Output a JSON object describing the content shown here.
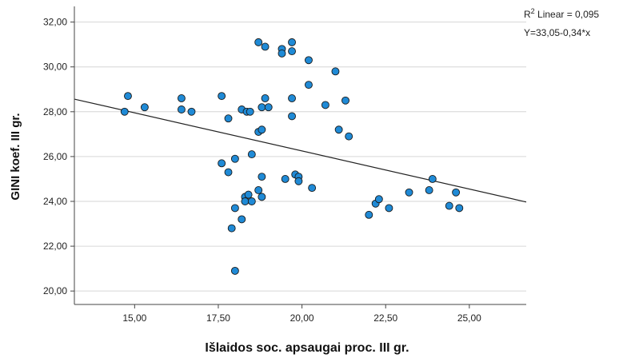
{
  "chart_data": {
    "type": "scatter",
    "title": "",
    "xlabel": "Išlaidos soc. apsaugai proc. III gr.",
    "ylabel": "GINI koef. III gr.",
    "xlim": [
      13.2,
      26.7
    ],
    "ylim": [
      19.4,
      32.7
    ],
    "x_ticks": [
      15,
      17.5,
      20,
      22.5,
      25
    ],
    "x_tick_labels": [
      "15,00",
      "17,50",
      "20,00",
      "22,50",
      "25,00"
    ],
    "y_ticks": [
      20,
      22,
      24,
      26,
      28,
      30,
      32
    ],
    "y_tick_labels": [
      "20,00",
      "22,00",
      "24,00",
      "26,00",
      "28,00",
      "30,00",
      "32,00"
    ],
    "grid": "horizontal",
    "point_color": "#1f8ad6",
    "point_edge_color": "#1a1a1a",
    "line_color": "#222222",
    "annotation": {
      "r2_label_prefix": "R",
      "r2_label_sup": "2",
      "r2_label_rest": " Linear = 0,095",
      "equation": "Y=33,05-0,34*x"
    },
    "fit_line": {
      "intercept": 33.05,
      "slope": -0.34
    },
    "points": [
      {
        "x": 14.7,
        "y": 28.0
      },
      {
        "x": 14.8,
        "y": 28.7
      },
      {
        "x": 15.3,
        "y": 28.2
      },
      {
        "x": 16.4,
        "y": 28.6
      },
      {
        "x": 16.4,
        "y": 28.1
      },
      {
        "x": 16.7,
        "y": 28.0
      },
      {
        "x": 17.6,
        "y": 28.7
      },
      {
        "x": 17.8,
        "y": 27.7
      },
      {
        "x": 18.2,
        "y": 28.1
      },
      {
        "x": 18.35,
        "y": 28.0
      },
      {
        "x": 18.45,
        "y": 28.0
      },
      {
        "x": 18.8,
        "y": 28.2
      },
      {
        "x": 18.9,
        "y": 28.6
      },
      {
        "x": 19.0,
        "y": 28.2
      },
      {
        "x": 18.7,
        "y": 27.1
      },
      {
        "x": 18.8,
        "y": 27.2
      },
      {
        "x": 19.7,
        "y": 28.6
      },
      {
        "x": 19.7,
        "y": 27.8
      },
      {
        "x": 18.7,
        "y": 31.1
      },
      {
        "x": 18.9,
        "y": 30.9
      },
      {
        "x": 19.4,
        "y": 30.8
      },
      {
        "x": 19.4,
        "y": 30.6
      },
      {
        "x": 19.7,
        "y": 31.1
      },
      {
        "x": 19.7,
        "y": 30.7
      },
      {
        "x": 20.2,
        "y": 30.3
      },
      {
        "x": 20.2,
        "y": 29.2
      },
      {
        "x": 21.0,
        "y": 29.8
      },
      {
        "x": 20.7,
        "y": 28.3
      },
      {
        "x": 21.3,
        "y": 28.5
      },
      {
        "x": 21.1,
        "y": 27.2
      },
      {
        "x": 21.4,
        "y": 26.9
      },
      {
        "x": 17.6,
        "y": 25.7
      },
      {
        "x": 17.8,
        "y": 25.3
      },
      {
        "x": 18.0,
        "y": 25.9
      },
      {
        "x": 18.5,
        "y": 26.1
      },
      {
        "x": 18.8,
        "y": 25.1
      },
      {
        "x": 19.5,
        "y": 25.0
      },
      {
        "x": 19.8,
        "y": 25.2
      },
      {
        "x": 19.9,
        "y": 25.1
      },
      {
        "x": 19.9,
        "y": 24.9
      },
      {
        "x": 20.3,
        "y": 24.6
      },
      {
        "x": 18.3,
        "y": 24.2
      },
      {
        "x": 18.4,
        "y": 24.3
      },
      {
        "x": 18.3,
        "y": 24.0
      },
      {
        "x": 18.5,
        "y": 24.0
      },
      {
        "x": 18.7,
        "y": 24.5
      },
      {
        "x": 18.8,
        "y": 24.2
      },
      {
        "x": 18.0,
        "y": 23.7
      },
      {
        "x": 18.2,
        "y": 23.2
      },
      {
        "x": 17.9,
        "y": 22.8
      },
      {
        "x": 18.0,
        "y": 20.9
      },
      {
        "x": 22.0,
        "y": 23.4
      },
      {
        "x": 22.2,
        "y": 23.9
      },
      {
        "x": 22.3,
        "y": 24.1
      },
      {
        "x": 22.6,
        "y": 23.7
      },
      {
        "x": 23.2,
        "y": 24.4
      },
      {
        "x": 23.8,
        "y": 24.5
      },
      {
        "x": 23.9,
        "y": 25.0
      },
      {
        "x": 24.4,
        "y": 23.8
      },
      {
        "x": 24.6,
        "y": 24.4
      },
      {
        "x": 24.7,
        "y": 23.7
      }
    ]
  }
}
